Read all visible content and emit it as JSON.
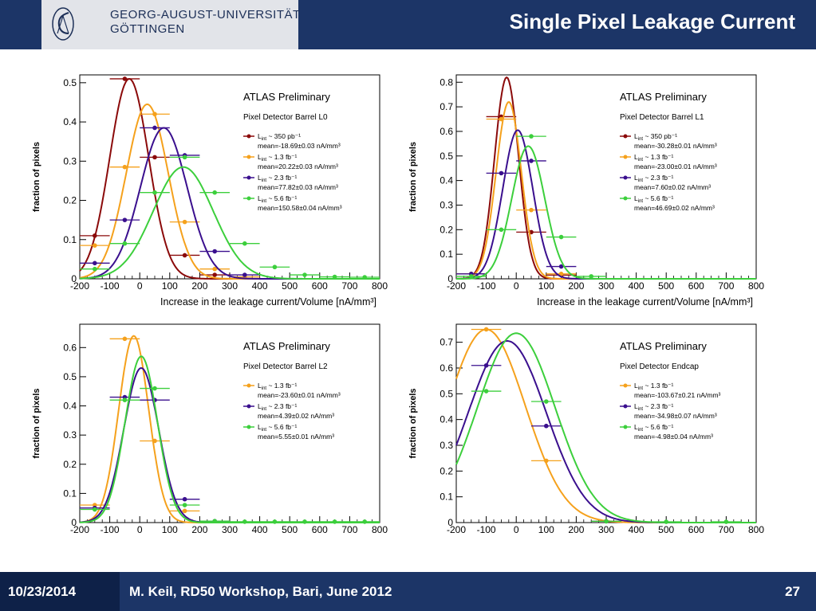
{
  "header": {
    "university_line1": "GEORG-AUGUST-UNIVERSITÄT",
    "university_line2": "GÖTTINGEN",
    "title": "Single Pixel Leakage Current"
  },
  "footer": {
    "date": "10/23/2014",
    "author": "M. Keil, RD50 Workshop, Bari, June 2012",
    "page": "27"
  },
  "colors": {
    "header_bg": "#1c3567",
    "series_350pb": "#8b0a0a",
    "series_1_3fb": "#f5a11c",
    "series_2_3fb": "#3a0f8e",
    "series_5_6fb": "#3ccf3c"
  },
  "chart_data": [
    {
      "type": "scatter",
      "id": "L0",
      "title": "ATLAS Preliminary",
      "subtitle": "Pixel Detector Barrel L0",
      "xlabel": "Increase in the leakage current/Volume [nA/mm³]",
      "ylabel": "fraction of pixels",
      "xlim": [
        -200,
        800
      ],
      "ylim": [
        0,
        0.52
      ],
      "xticks": [
        -200,
        -100,
        0,
        100,
        200,
        300,
        400,
        500,
        600,
        700,
        800
      ],
      "yticks": [
        0,
        0.1,
        0.2,
        0.3,
        0.4,
        0.5
      ],
      "legend_position": "right",
      "series": [
        {
          "label": "L_int ~ 350 pb⁻¹",
          "mean_text": "mean=-18.69±0.03 nA/mm³",
          "color": "#8b0a0a",
          "points": [
            [
              -150,
              0.11
            ],
            [
              -50,
              0.51
            ],
            [
              50,
              0.31
            ],
            [
              150,
              0.06
            ],
            [
              250,
              0.01
            ]
          ],
          "fit": {
            "mu": -35,
            "sigma": 65,
            "amp": 0.51
          }
        },
        {
          "label": "L_int ~ 1.3 fb⁻¹",
          "mean_text": "mean=20.22±0.03 nA/mm³",
          "color": "#f5a11c",
          "points": [
            [
              -150,
              0.085
            ],
            [
              -50,
              0.285
            ],
            [
              50,
              0.42
            ],
            [
              150,
              0.145
            ],
            [
              250,
              0.025
            ],
            [
              350,
              0.005
            ]
          ],
          "fit": {
            "mu": 25,
            "sigma": 70,
            "amp": 0.445
          }
        },
        {
          "label": "L_int ~ 2.3 fb⁻¹",
          "mean_text": "mean=77.82±0.03 nA/mm³",
          "color": "#3a0f8e",
          "points": [
            [
              -150,
              0.04
            ],
            [
              -50,
              0.15
            ],
            [
              50,
              0.385
            ],
            [
              150,
              0.315
            ],
            [
              250,
              0.07
            ],
            [
              350,
              0.01
            ]
          ],
          "fit": {
            "mu": 80,
            "sigma": 78,
            "amp": 0.385
          }
        },
        {
          "label": "L_int ~ 5.6 fb⁻¹",
          "mean_text": "mean=150.58±0.04 nA/mm³",
          "color": "#3ccf3c",
          "points": [
            [
              -150,
              0.025
            ],
            [
              -50,
              0.09
            ],
            [
              50,
              0.22
            ],
            [
              150,
              0.31
            ],
            [
              250,
              0.22
            ],
            [
              350,
              0.09
            ],
            [
              450,
              0.03
            ],
            [
              550,
              0.01
            ],
            [
              650,
              0.005
            ],
            [
              750,
              0.004
            ]
          ],
          "fit": {
            "mu": 145,
            "sigma": 100,
            "amp": 0.285
          }
        }
      ]
    },
    {
      "type": "scatter",
      "id": "L1",
      "title": "ATLAS Preliminary",
      "subtitle": "Pixel Detector Barrel L1",
      "xlabel": "Increase in the leakage current/Volume [nA/mm³]",
      "ylabel": "fraction of pixels",
      "xlim": [
        -200,
        800
      ],
      "ylim": [
        0,
        0.83
      ],
      "xticks": [
        -200,
        -100,
        0,
        100,
        200,
        300,
        400,
        500,
        600,
        700,
        800
      ],
      "yticks": [
        0,
        0.1,
        0.2,
        0.3,
        0.4,
        0.5,
        0.6,
        0.7,
        0.8
      ],
      "legend_position": "right",
      "series": [
        {
          "label": "L_int ~ 350 pb⁻¹",
          "mean_text": "mean=-30.28±0.01 nA/mm³",
          "color": "#8b0a0a",
          "points": [
            [
              -150,
              0.02
            ],
            [
              -50,
              0.66
            ],
            [
              50,
              0.19
            ],
            [
              150,
              0.015
            ]
          ],
          "fit": {
            "mu": -32,
            "sigma": 40,
            "amp": 0.82
          }
        },
        {
          "label": "L_int ~ 1.3 fb⁻¹",
          "mean_text": "mean=-23.00±0.01 nA/mm³",
          "color": "#f5a11c",
          "points": [
            [
              -150,
              0.02
            ],
            [
              -50,
              0.65
            ],
            [
              50,
              0.28
            ],
            [
              150,
              0.02
            ]
          ],
          "fit": {
            "mu": -25,
            "sigma": 42,
            "amp": 0.72
          }
        },
        {
          "label": "L_int ~ 2.3 fb⁻¹",
          "mean_text": "mean=7.60±0.02 nA/mm³",
          "color": "#3a0f8e",
          "points": [
            [
              -150,
              0.02
            ],
            [
              -50,
              0.43
            ],
            [
              50,
              0.48
            ],
            [
              150,
              0.05
            ]
          ],
          "fit": {
            "mu": 5,
            "sigma": 50,
            "amp": 0.605
          }
        },
        {
          "label": "L_int ~ 5.6 fb⁻¹",
          "mean_text": "mean=46.69±0.02 nA/mm³",
          "color": "#3ccf3c",
          "points": [
            [
              -150,
              0.01
            ],
            [
              -50,
              0.2
            ],
            [
              50,
              0.58
            ],
            [
              150,
              0.17
            ],
            [
              250,
              0.01
            ]
          ],
          "fit": {
            "mu": 40,
            "sigma": 55,
            "amp": 0.54
          }
        }
      ]
    },
    {
      "type": "scatter",
      "id": "L2",
      "title": "ATLAS Preliminary",
      "subtitle": "Pixel Detector Barrel L2",
      "xlabel": "",
      "ylabel": "fraction of pixels",
      "xlim": [
        -200,
        800
      ],
      "ylim": [
        0,
        0.68
      ],
      "xticks": [
        -200,
        -100,
        0,
        100,
        200,
        300,
        400,
        500,
        600,
        700,
        800
      ],
      "yticks": [
        0,
        0.1,
        0.2,
        0.3,
        0.4,
        0.5,
        0.6
      ],
      "legend_position": "right",
      "series": [
        {
          "label": "L_int ~ 1.3 fb⁻¹",
          "mean_text": "mean=-23.60±0.01 nA/mm³",
          "color": "#f5a11c",
          "points": [
            [
              -150,
              0.06
            ],
            [
              -50,
              0.63
            ],
            [
              50,
              0.28
            ],
            [
              150,
              0.04
            ]
          ],
          "fit": {
            "mu": -20,
            "sigma": 50,
            "amp": 0.64
          }
        },
        {
          "label": "L_int ~ 2.3 fb⁻¹",
          "mean_text": "mean=4.39±0.02 nA/mm³",
          "color": "#3a0f8e",
          "points": [
            [
              -150,
              0.05
            ],
            [
              -50,
              0.43
            ],
            [
              50,
              0.42
            ],
            [
              150,
              0.08
            ],
            [
              250,
              0.005
            ]
          ],
          "fit": {
            "mu": 5,
            "sigma": 58,
            "amp": 0.53
          }
        },
        {
          "label": "L_int ~ 5.6 fb⁻¹",
          "mean_text": "mean=5.55±0.01 nA/mm³",
          "color": "#3ccf3c",
          "points": [
            [
              -150,
              0.045
            ],
            [
              -50,
              0.42
            ],
            [
              50,
              0.46
            ],
            [
              150,
              0.06
            ],
            [
              250,
              0.005
            ],
            [
              350,
              0.003
            ],
            [
              450,
              0.003
            ],
            [
              550,
              0.003
            ],
            [
              650,
              0.003
            ],
            [
              750,
              0.003
            ]
          ],
          "fit": {
            "mu": 5,
            "sigma": 54,
            "amp": 0.57
          }
        }
      ]
    },
    {
      "type": "scatter",
      "id": "Endcap",
      "title": "ATLAS Preliminary",
      "subtitle": "Pixel Detector Endcap",
      "xlabel": "",
      "ylabel": "fraction of pixels",
      "xlim": [
        -200,
        800
      ],
      "ylim": [
        0,
        0.77
      ],
      "xticks": [
        -200,
        -100,
        0,
        100,
        200,
        300,
        400,
        500,
        600,
        700,
        800
      ],
      "yticks": [
        0,
        0.1,
        0.2,
        0.3,
        0.4,
        0.5,
        0.6,
        0.7
      ],
      "legend_position": "right",
      "series": [
        {
          "label": "L_int ~ 1.3 fb⁻¹",
          "mean_text": "mean=-103.67±0.21 nA/mm³",
          "color": "#f5a11c",
          "points": [
            [
              -100,
              0.75
            ],
            [
              100,
              0.24
            ],
            [
              300,
              0.005
            ]
          ],
          "fit": {
            "mu": -100,
            "sigma": 130,
            "amp": 0.75
          }
        },
        {
          "label": "L_int ~ 2.3 fb⁻¹",
          "mean_text": "mean=-34.98±0.07 nA/mm³",
          "color": "#3a0f8e",
          "points": [
            [
              -100,
              0.61
            ],
            [
              100,
              0.375
            ],
            [
              300,
              0.005
            ]
          ],
          "fit": {
            "mu": -30,
            "sigma": 130,
            "amp": 0.705
          }
        },
        {
          "label": "L_int ~ 5.6 fb⁻¹",
          "mean_text": "mean=-4.98±0.04 nA/mm³",
          "color": "#3ccf3c",
          "points": [
            [
              -100,
              0.51
            ],
            [
              100,
              0.47
            ],
            [
              300,
              0.005
            ],
            [
              500,
              0.003
            ],
            [
              700,
              0.003
            ]
          ],
          "fit": {
            "mu": 0,
            "sigma": 130,
            "amp": 0.735
          }
        }
      ]
    }
  ]
}
